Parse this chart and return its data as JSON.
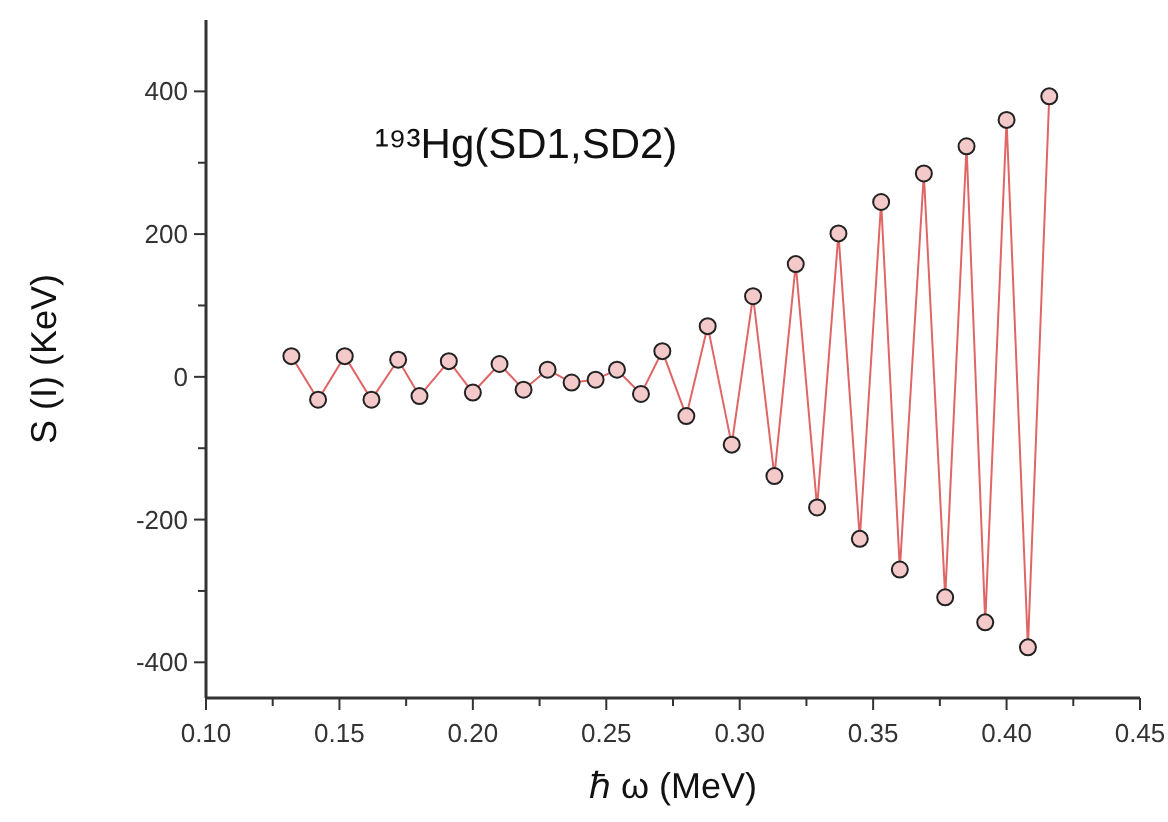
{
  "chart_data": {
    "type": "line",
    "title": "¹⁹³Hg(SD1,SD2)",
    "xlabel": "ℏ ω (MeV)",
    "ylabel": "S (I) (KeV)",
    "x": [
      0.132,
      0.142,
      0.152,
      0.162,
      0.172,
      0.18,
      0.191,
      0.2,
      0.21,
      0.219,
      0.228,
      0.237,
      0.246,
      0.254,
      0.263,
      0.271,
      0.28,
      0.288,
      0.297,
      0.305,
      0.313,
      0.321,
      0.329,
      0.337,
      0.345,
      0.353,
      0.36,
      0.369,
      0.377,
      0.385,
      0.392,
      0.4,
      0.408,
      0.416
    ],
    "series": [
      {
        "color": "#e06666",
        "values": [
          29,
          -32,
          29,
          -32,
          24,
          -27,
          22,
          -22,
          18,
          -18,
          10,
          -8,
          -4,
          10,
          -24,
          36,
          -55,
          71,
          -95,
          113,
          -139,
          158,
          -183,
          201,
          -227,
          245,
          -270,
          285,
          -309,
          323,
          -344,
          360,
          -379,
          393
        ]
      }
    ],
    "marker": "circle",
    "line_style": "solid",
    "grid": false,
    "xlim": [
      0.1,
      0.45
    ],
    "xticks": [
      {
        "value": 0.1,
        "label": "0.10"
      },
      {
        "value": 0.125,
        "label": null
      },
      {
        "value": 0.15,
        "label": "0.15"
      },
      {
        "value": 0.175,
        "label": null
      },
      {
        "value": 0.2,
        "label": "0.20"
      },
      {
        "value": 0.225,
        "label": null
      },
      {
        "value": 0.25,
        "label": "0.25"
      },
      {
        "value": 0.275,
        "label": null
      },
      {
        "value": 0.3,
        "label": "0.30"
      },
      {
        "value": 0.325,
        "label": null
      },
      {
        "value": 0.35,
        "label": "0.35"
      },
      {
        "value": 0.375,
        "label": null
      },
      {
        "value": 0.4,
        "label": "0.40"
      },
      {
        "value": 0.425,
        "label": null
      },
      {
        "value": 0.45,
        "label": "0.45"
      }
    ],
    "ylim": [
      -450,
      500
    ],
    "yticks": [
      -400,
      {
        "value": -300,
        "label": null
      },
      -200,
      {
        "value": -100,
        "label": null
      },
      0,
      {
        "value": 100,
        "label": null
      },
      200,
      {
        "value": 300,
        "label": null
      },
      400
    ]
  }
}
